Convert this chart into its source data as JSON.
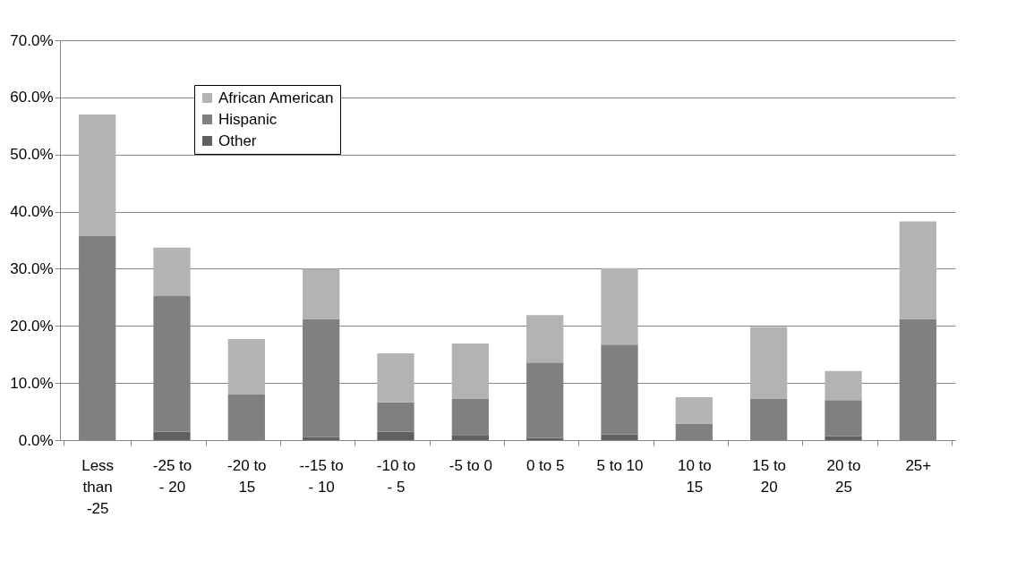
{
  "chart_data": {
    "type": "bar",
    "stacked": true,
    "categories": [
      "Less than -25",
      "-25 to - 20",
      "-20 to 15",
      "--15 to - 10",
      "-10 to - 5",
      "-5 to 0",
      "0 to 5",
      "5 to 10",
      "10 to 15",
      "15 to 20",
      "20 to 25",
      "25+"
    ],
    "series": [
      {
        "name": "Other",
        "color": "#606060",
        "values": [
          0,
          1.5,
          0,
          0.5,
          1.5,
          0.9,
          0.4,
          1.0,
          0,
          0,
          0.7,
          0
        ]
      },
      {
        "name": "Hispanic",
        "color": "#808080",
        "values": [
          35.7,
          23.7,
          8.0,
          20.7,
          5.1,
          6.4,
          13.2,
          15.7,
          2.9,
          7.3,
          6.3,
          21.2
        ]
      },
      {
        "name": "African American",
        "color": "#b3b3b3",
        "values": [
          21.3,
          8.5,
          9.7,
          8.8,
          8.6,
          9.6,
          8.3,
          13.4,
          4.6,
          12.5,
          5.1,
          17.1
        ]
      }
    ],
    "ylim": [
      0,
      70
    ],
    "yticks": [
      {
        "value": 0,
        "label": "0.0%"
      },
      {
        "value": 10,
        "label": "10.0%"
      },
      {
        "value": 20,
        "label": "20.0%"
      },
      {
        "value": 30,
        "label": "30.0%"
      },
      {
        "value": 40,
        "label": "40.0%"
      },
      {
        "value": 50,
        "label": "50.0%"
      },
      {
        "value": 60,
        "label": "60.0%"
      },
      {
        "value": 70,
        "label": "70.0%"
      }
    ],
    "grid": "y",
    "legend": "top left"
  }
}
